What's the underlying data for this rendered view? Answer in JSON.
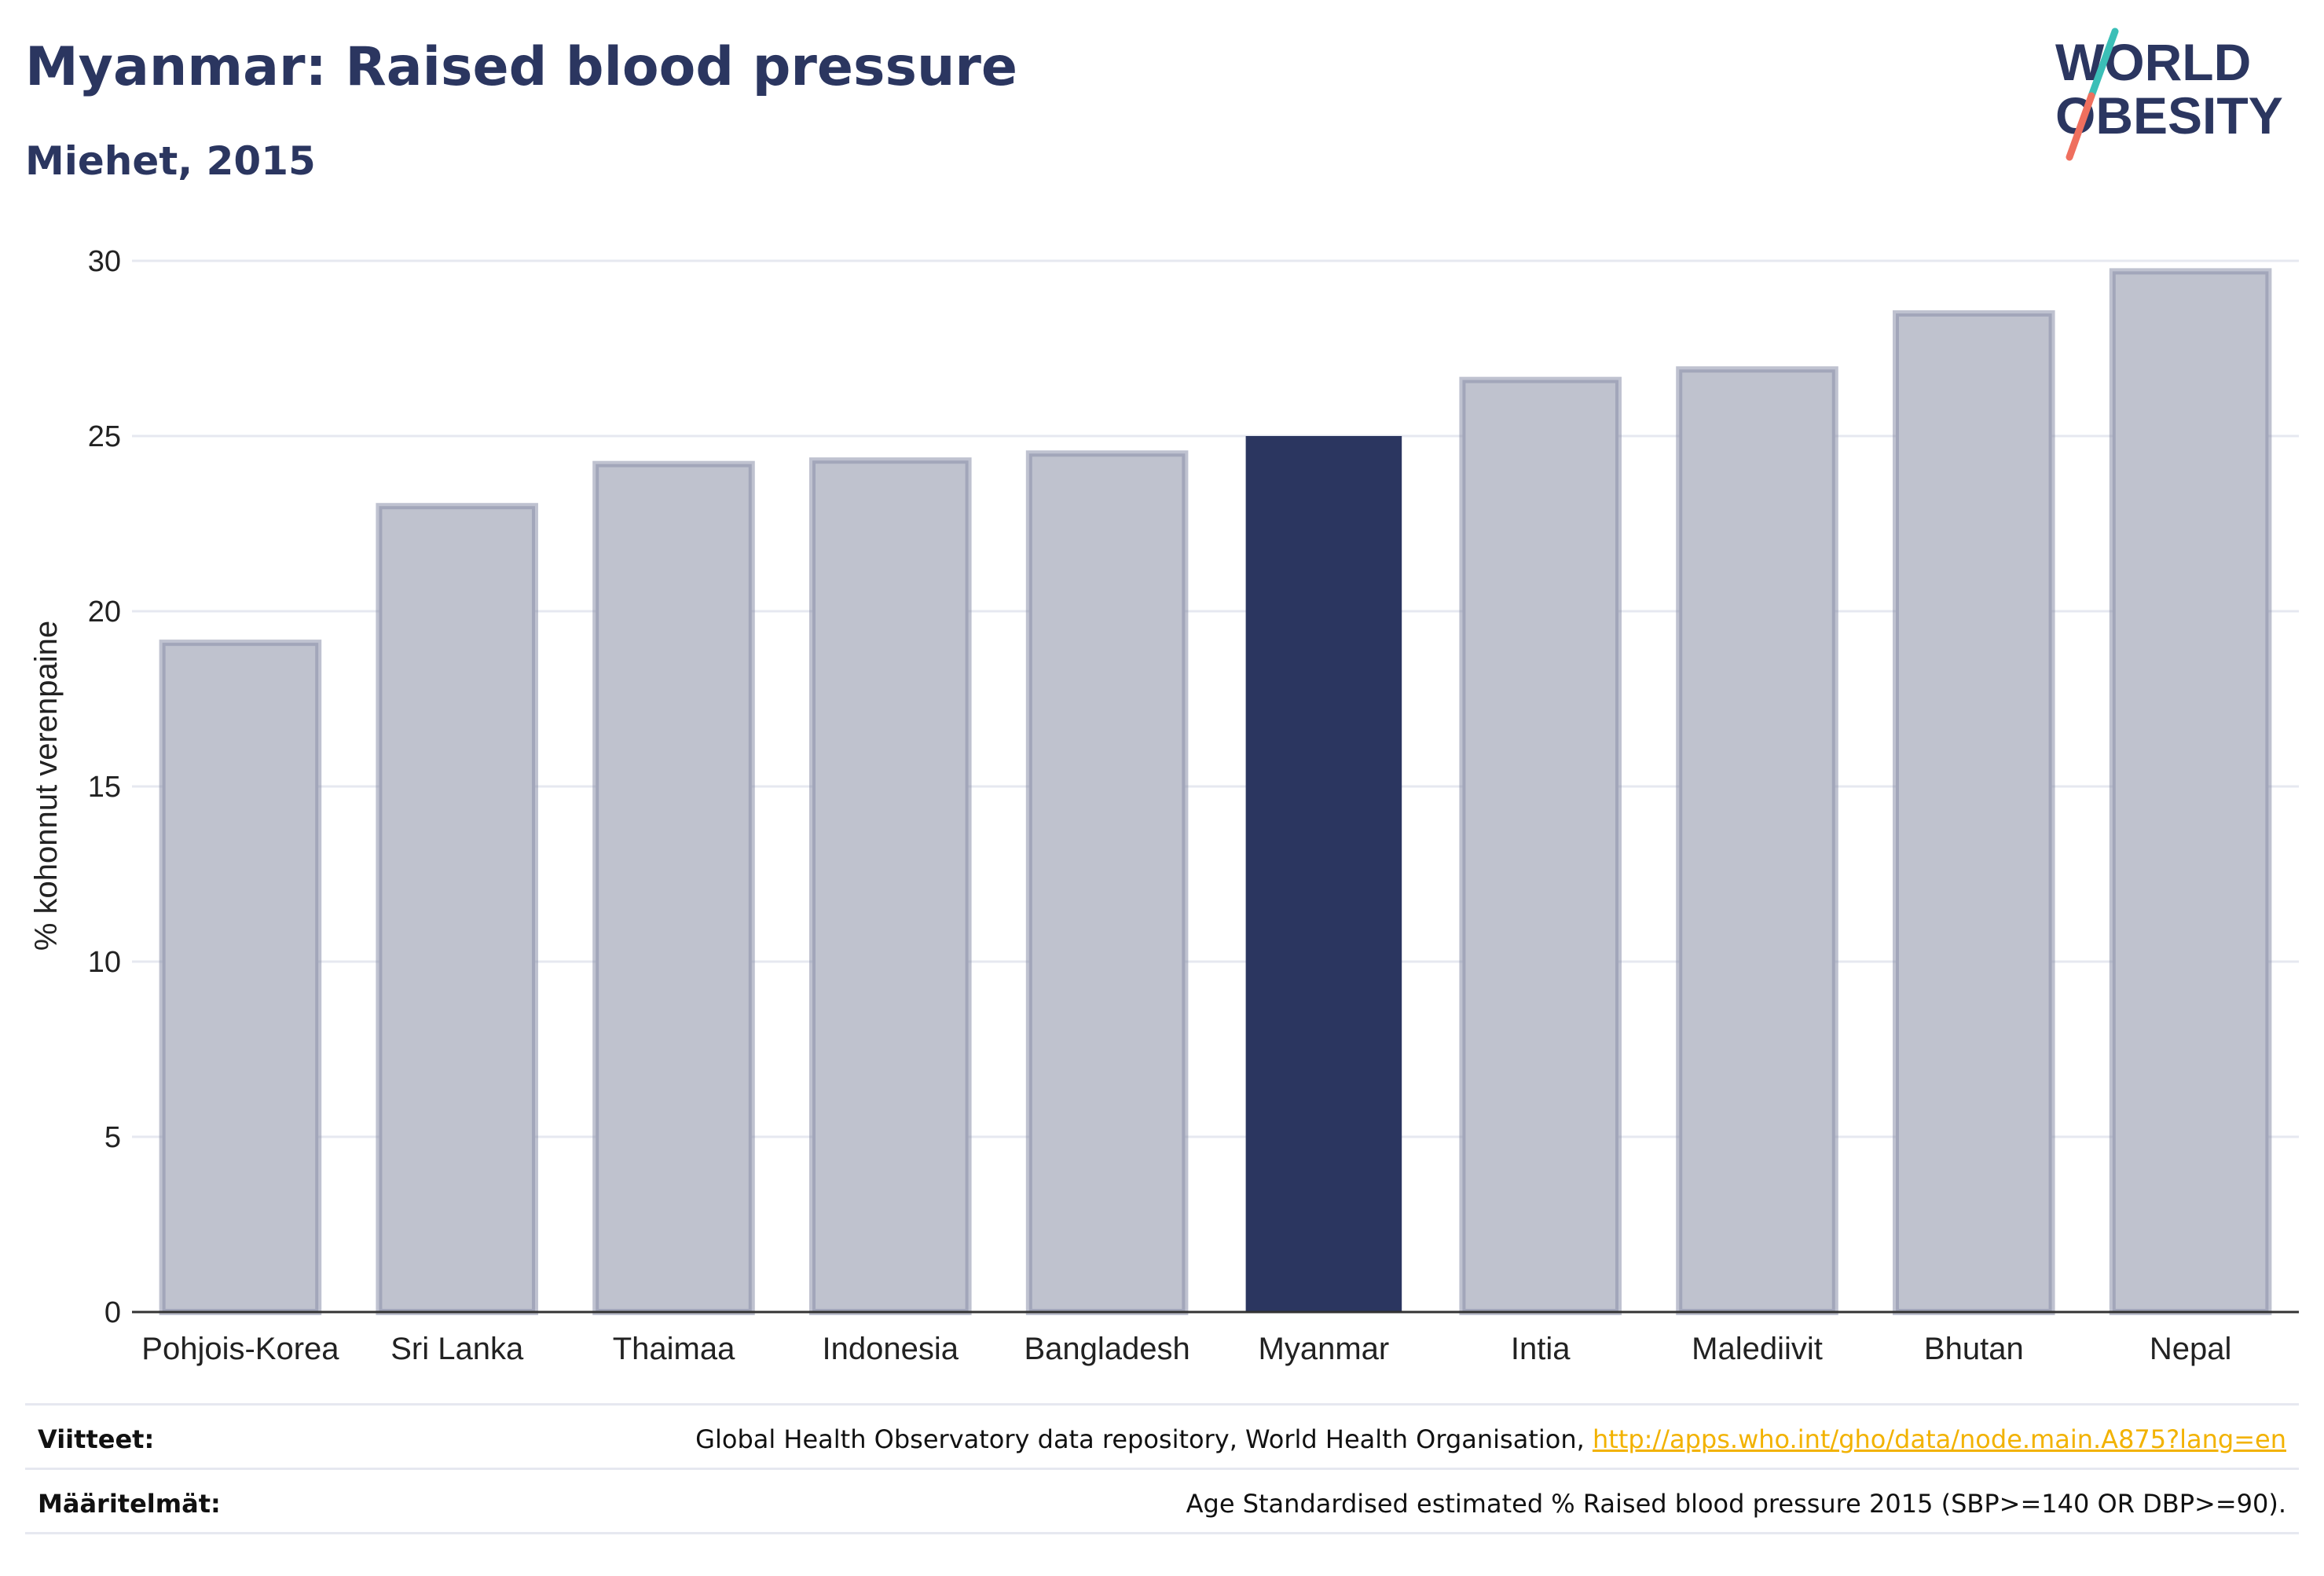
{
  "header": {
    "title": "Myanmar: Raised blood pressure",
    "subtitle": "Miehet, 2015"
  },
  "logo": {
    "text_line1": "WORLD",
    "text_line2": "OBESITY"
  },
  "colors": {
    "highlight": "#2b3660",
    "muted": "#bfc2ce",
    "muted_stroke": "#8a90aa",
    "grid": "#e6e8f0",
    "logo_text": "#2b3660",
    "logo_slash_top": "#3bbfb7",
    "logo_slash_bottom": "#ef6f5e",
    "link": "#f2b200"
  },
  "chart_data": {
    "type": "bar",
    "categories": [
      "Pohjois-Korea",
      "Sri Lanka",
      "Thaimaa",
      "Indonesia",
      "Bangladesh",
      "Myanmar",
      "Intia",
      "Malediivit",
      "Bhutan",
      "Nepal"
    ],
    "values": [
      19.1,
      23.0,
      24.2,
      24.3,
      24.5,
      25.0,
      26.6,
      26.9,
      28.5,
      29.7
    ],
    "highlight": "Myanmar",
    "ylabel": "% kohonnut verenpaine",
    "xlabel": "",
    "ylim": [
      0,
      30
    ],
    "yticks": [
      0,
      5,
      10,
      15,
      20,
      25,
      30
    ],
    "grid": true
  },
  "footer": {
    "references_label": "Viitteet:",
    "references_text": "Global Health Observatory data repository, World Health Organisation, ",
    "references_link": "http://apps.who.int/gho/data/node.main.A875?lang=en",
    "definitions_label": "Määritelmät:",
    "definitions_text": "Age Standardised estimated % Raised blood pressure 2015 (SBP>=140 OR DBP>=90)."
  }
}
